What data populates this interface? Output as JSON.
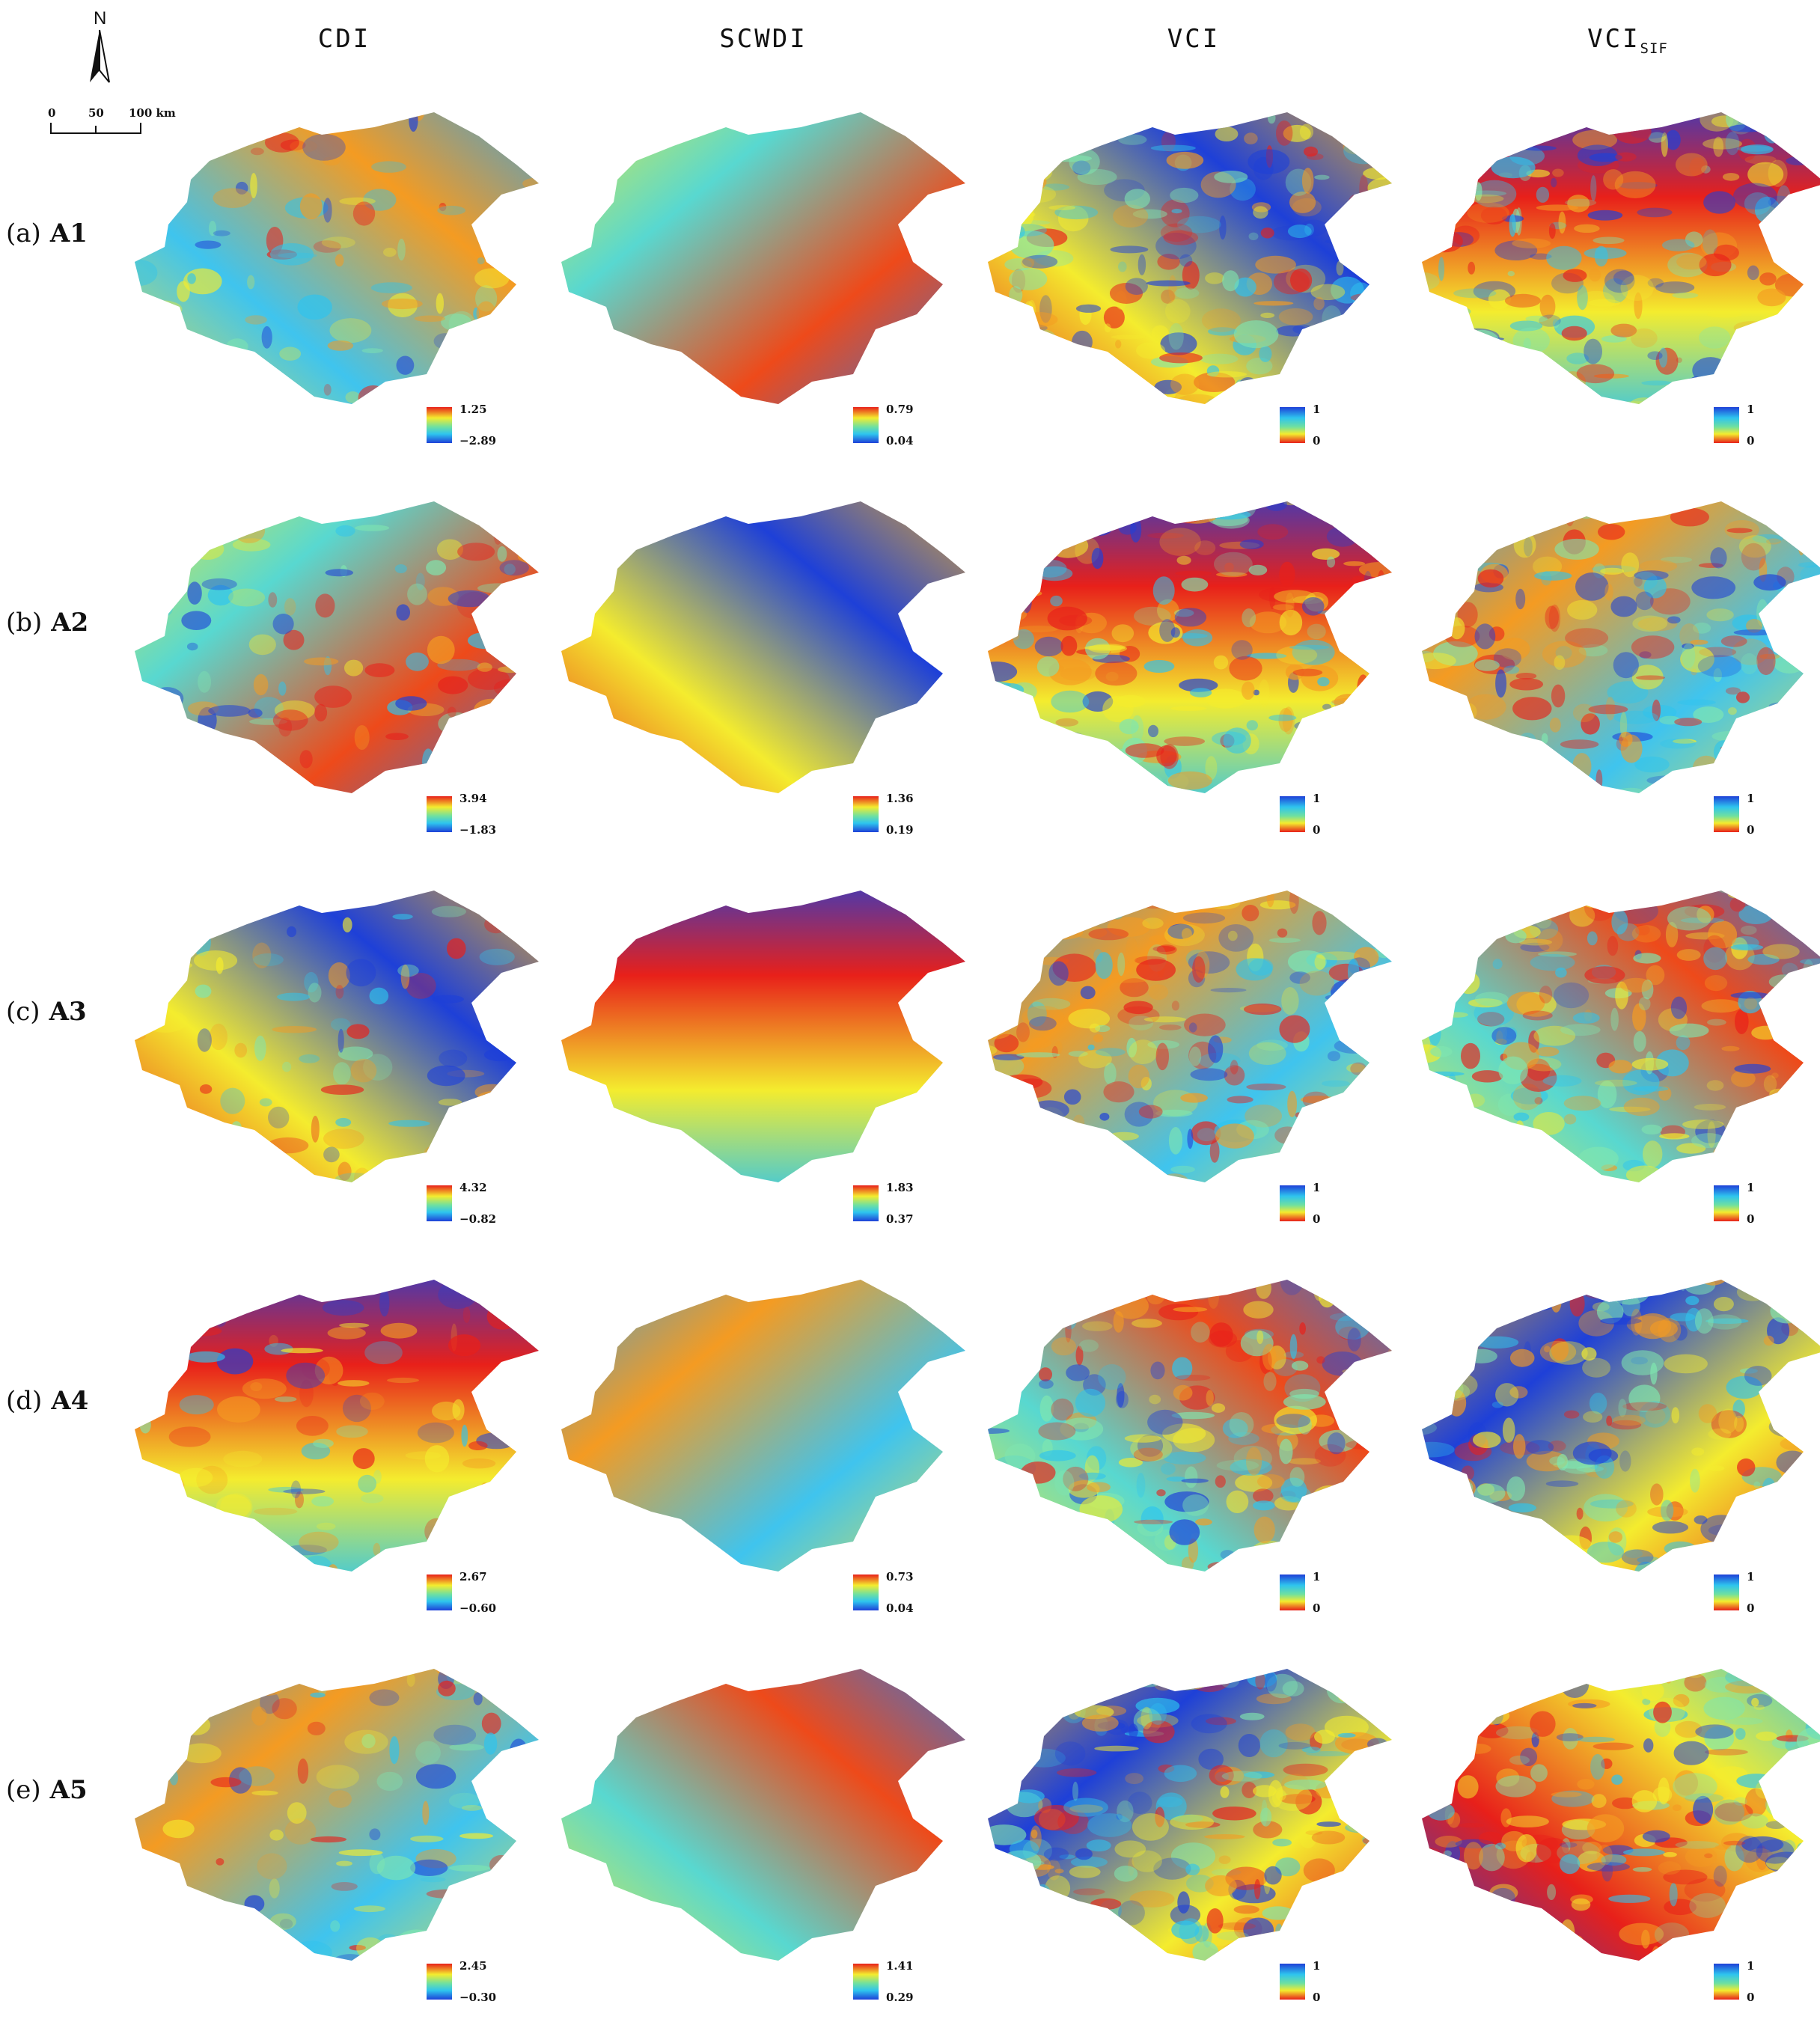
{
  "north": {
    "label": "N"
  },
  "scale": {
    "ticks": [
      "0",
      "50",
      "100 km"
    ]
  },
  "columns": [
    {
      "label": "CDI",
      "sub": ""
    },
    {
      "label": "SCWDI",
      "sub": ""
    },
    {
      "label": "VCI",
      "sub": ""
    },
    {
      "label": "VCI",
      "sub": "SIF"
    }
  ],
  "rows": [
    {
      "letter": "(a)",
      "code": "A1",
      "legends": [
        {
          "max": "1.25",
          "min": "−2.89"
        },
        {
          "max": "0.79",
          "min": "0.04"
        },
        {
          "max": "1",
          "min": "0"
        },
        {
          "max": "1",
          "min": "0"
        }
      ]
    },
    {
      "letter": "(b)",
      "code": "A2",
      "legends": [
        {
          "max": "3.94",
          "min": "−1.83"
        },
        {
          "max": "1.36",
          "min": "0.19"
        },
        {
          "max": "1",
          "min": "0"
        },
        {
          "max": "1",
          "min": "0"
        }
      ]
    },
    {
      "letter": "(c)",
      "code": "A3",
      "legends": [
        {
          "max": "4.32",
          "min": "−0.82"
        },
        {
          "max": "1.83",
          "min": "0.37"
        },
        {
          "max": "1",
          "min": "0"
        },
        {
          "max": "1",
          "min": "0"
        }
      ]
    },
    {
      "letter": "(d)",
      "code": "A4",
      "legends": [
        {
          "max": "2.67",
          "min": "−0.60"
        },
        {
          "max": "0.73",
          "min": "0.04"
        },
        {
          "max": "1",
          "min": "0"
        },
        {
          "max": "1",
          "min": "0"
        }
      ]
    },
    {
      "letter": "(e)",
      "code": "A5",
      "legends": [
        {
          "max": "2.45",
          "min": "−0.30"
        },
        {
          "max": "1.41",
          "min": "0.29"
        },
        {
          "max": "1",
          "min": "0"
        },
        {
          "max": "1",
          "min": "0"
        }
      ]
    }
  ],
  "colors": {
    "dry": "#e8201a",
    "mid": "#f4ec2e",
    "wet": "#1e40d8",
    "light": "#2ec4ee"
  }
}
